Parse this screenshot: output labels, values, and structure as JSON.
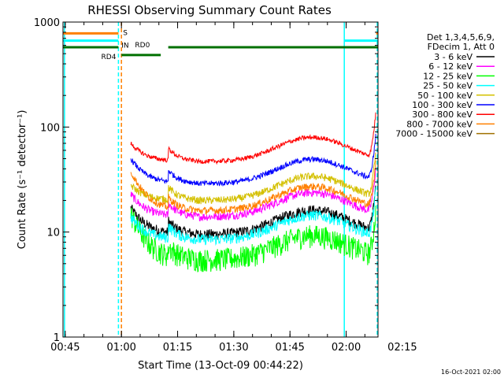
{
  "chart_data": {
    "type": "line",
    "title": "RHESSI Observing Summary Count Rates",
    "xlabel": "Start Time (13-Oct-09 00:44:22)",
    "ylabel": "Count Rate (s⁻¹ detector⁻¹)",
    "ylim": [
      1,
      1000
    ],
    "y_scale": "log",
    "x_range_min": [
      44.4,
      128.5
    ],
    "x_ticks": [
      {
        "min": 45,
        "label": "00:45"
      },
      {
        "min": 60,
        "label": "01:00"
      },
      {
        "min": 75,
        "label": "01:15"
      },
      {
        "min": 90,
        "label": "01:30"
      },
      {
        "min": 105,
        "label": "01:45"
      },
      {
        "min": 120,
        "label": "02:00"
      },
      {
        "min": 135,
        "label": "02:15"
      }
    ],
    "y_ticks": [
      {
        "value": 1,
        "label": "1"
      },
      {
        "value": 10,
        "label": "10"
      },
      {
        "value": 100,
        "label": "100"
      },
      {
        "value": 1000,
        "label": "1000"
      }
    ],
    "legend": {
      "position": "right",
      "header": [
        "Det 1,3,4,5,6,9,",
        "FDecim 1, Att 0"
      ]
    },
    "series": [
      {
        "name": "3 - 6 keV",
        "color": "#000000",
        "level": 9.5,
        "start_peak": 17,
        "noise": 0.12
      },
      {
        "name": "6 - 12 keV",
        "color": "#ff00ff",
        "level": 14,
        "start_peak": 23,
        "noise": 0.09
      },
      {
        "name": "12 - 25 keV",
        "color": "#00ff00",
        "level": 5.5,
        "start_peak": 15,
        "noise": 0.25
      },
      {
        "name": "25 - 50 keV",
        "color": "#00ffff",
        "level": 8.5,
        "start_peak": 14,
        "noise": 0.12
      },
      {
        "name": "50 - 100 keV",
        "color": "#d4c000",
        "level": 20,
        "start_peak": 28,
        "noise": 0.08
      },
      {
        "name": "100 - 300 keV",
        "color": "#0000ff",
        "level": 29,
        "start_peak": 50,
        "noise": 0.06
      },
      {
        "name": "300 - 800 keV",
        "color": "#ff0000",
        "level": 47,
        "start_peak": 70,
        "noise": 0.05
      },
      {
        "name": "800 - 7000 keV",
        "color": "#ff8000",
        "level": 16,
        "start_peak": 38,
        "noise": 0.08
      },
      {
        "name": "7000 - 15000 keV",
        "color": "#a07000",
        "level": 0,
        "start_peak": 0,
        "noise": 0
      }
    ],
    "data_window_min": [
      62.5,
      128.0
    ],
    "orbit_bump": {
      "center_min": 111,
      "width_min": 12,
      "factor": 1.7
    },
    "vertical_lines": [
      {
        "min": 44.8,
        "color": "#00ffff",
        "style": "solid"
      },
      {
        "min": 59.2,
        "color": "#00ffff",
        "style": "dashed"
      },
      {
        "min": 60.0,
        "color": "#ff8000",
        "style": "dashed"
      },
      {
        "min": 119.5,
        "color": "#00ffff",
        "style": "solid"
      },
      {
        "min": 128.3,
        "color": "#00ffff",
        "style": "dashed"
      }
    ],
    "flag_bars": [
      {
        "label": "S",
        "color": "#ff8000",
        "value": 780,
        "segments": [
          [
            44.4,
            59.2
          ],
          [
            128.0,
            128.5
          ]
        ]
      },
      {
        "label": "IN",
        "color": "#00ffff",
        "value": 665,
        "segments": [
          [
            44.4,
            59.2
          ],
          [
            119.5,
            128.5
          ]
        ]
      },
      {
        "label": "RD0",
        "color": "#007000",
        "value": 575,
        "segments": [
          [
            44.4,
            59.2
          ],
          [
            72.5,
            128.5
          ]
        ]
      },
      {
        "label": "RD4",
        "color": "#007000",
        "value": 485,
        "segments": [
          [
            60.0,
            70.5
          ]
        ]
      }
    ]
  },
  "footer": {
    "timestamp": "16-Oct-2021 02:00"
  }
}
